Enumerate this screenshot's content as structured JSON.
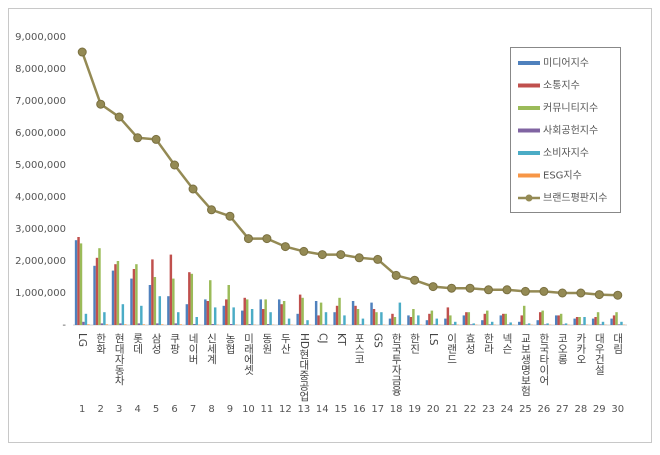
{
  "chart_data": {
    "type": "bar",
    "categories": [
      "LG",
      "한화",
      "현대자동차",
      "롯데",
      "삼성",
      "쿠팡",
      "네이버",
      "신세계",
      "농협",
      "미래에셋",
      "동원",
      "두산",
      "HD현대중공업",
      "CJ",
      "KT",
      "포스코",
      "GS",
      "한국투자금융",
      "한진",
      "LS",
      "이랜드",
      "효성",
      "한라",
      "넥슨",
      "교보생명보험",
      "한국타이어",
      "코오롱",
      "카카오",
      "대우건설",
      "대림"
    ],
    "ranks": [
      1,
      2,
      3,
      4,
      5,
      6,
      7,
      8,
      9,
      10,
      11,
      12,
      13,
      14,
      15,
      16,
      17,
      18,
      19,
      20,
      21,
      22,
      23,
      24,
      25,
      26,
      27,
      28,
      29,
      30
    ],
    "ylim": [
      0,
      9000000
    ],
    "yticks": [
      {
        "value": 0,
        "label": "-"
      },
      {
        "value": 1000000,
        "label": "1,000,000"
      },
      {
        "value": 2000000,
        "label": "2,000,000"
      },
      {
        "value": 3000000,
        "label": "3,000,000"
      },
      {
        "value": 4000000,
        "label": "4,000,000"
      },
      {
        "value": 5000000,
        "label": "5,000,000"
      },
      {
        "value": 6000000,
        "label": "6,000,000"
      },
      {
        "value": 7000000,
        "label": "7,000,000"
      },
      {
        "value": 8000000,
        "label": "8,000,000"
      },
      {
        "value": 9000000,
        "label": "9,000,000"
      }
    ],
    "grid": false,
    "legend": "upper right",
    "series": [
      {
        "name": "미디어지수",
        "color": "#4f81bd",
        "type": "bar",
        "values": [
          2650000,
          1850000,
          1700000,
          1450000,
          1250000,
          900000,
          650000,
          800000,
          600000,
          450000,
          800000,
          800000,
          350000,
          750000,
          400000,
          750000,
          700000,
          200000,
          300000,
          150000,
          200000,
          300000,
          150000,
          300000,
          100000,
          150000,
          300000,
          200000,
          200000,
          200000
        ]
      },
      {
        "name": "소통지수",
        "color": "#c0504d",
        "type": "bar",
        "values": [
          2750000,
          2100000,
          1900000,
          1750000,
          2050000,
          2200000,
          1650000,
          750000,
          800000,
          850000,
          500000,
          650000,
          950000,
          300000,
          600000,
          600000,
          500000,
          350000,
          250000,
          350000,
          550000,
          400000,
          350000,
          350000,
          300000,
          400000,
          300000,
          250000,
          250000,
          300000
        ]
      },
      {
        "name": "커뮤니티지수",
        "color": "#9bbb59",
        "type": "bar",
        "values": [
          2550000,
          2400000,
          2000000,
          1900000,
          1500000,
          1450000,
          1600000,
          1400000,
          1250000,
          800000,
          800000,
          750000,
          850000,
          700000,
          850000,
          500000,
          400000,
          250000,
          500000,
          450000,
          300000,
          400000,
          450000,
          350000,
          600000,
          450000,
          350000,
          250000,
          400000,
          400000
        ]
      },
      {
        "name": "사회공헌지수",
        "color": "#8064a2",
        "type": "bar",
        "values": [
          100000,
          50000,
          50000,
          50000,
          50000,
          50000,
          30000,
          30000,
          30000,
          30000,
          30000,
          20000,
          20000,
          20000,
          20000,
          20000,
          20000,
          20000,
          20000,
          20000,
          20000,
          20000,
          20000,
          20000,
          20000,
          20000,
          20000,
          20000,
          20000,
          20000
        ]
      },
      {
        "name": "소비자지수",
        "color": "#4bacc6",
        "type": "bar",
        "values": [
          350000,
          400000,
          650000,
          600000,
          900000,
          400000,
          250000,
          550000,
          550000,
          500000,
          400000,
          200000,
          150000,
          400000,
          300000,
          200000,
          400000,
          700000,
          300000,
          200000,
          100000,
          50000,
          100000,
          80000,
          50000,
          50000,
          50000,
          250000,
          100000,
          100000
        ]
      },
      {
        "name": "ESG지수",
        "color": "#f79646",
        "type": "bar",
        "values": [
          20000,
          20000,
          20000,
          20000,
          20000,
          20000,
          10000,
          10000,
          10000,
          10000,
          10000,
          10000,
          10000,
          10000,
          10000,
          10000,
          10000,
          10000,
          10000,
          10000,
          10000,
          10000,
          10000,
          10000,
          10000,
          10000,
          10000,
          10000,
          10000,
          10000
        ]
      },
      {
        "name": "브랜드평판지수",
        "color": "#948a54",
        "type": "line",
        "values": [
          8530000,
          6900000,
          6500000,
          5850000,
          5800000,
          5000000,
          4250000,
          3600000,
          3400000,
          2700000,
          2700000,
          2450000,
          2300000,
          2200000,
          2200000,
          2100000,
          2050000,
          1550000,
          1400000,
          1200000,
          1150000,
          1150000,
          1100000,
          1100000,
          1050000,
          1050000,
          1000000,
          1000000,
          950000,
          930000
        ]
      }
    ]
  }
}
